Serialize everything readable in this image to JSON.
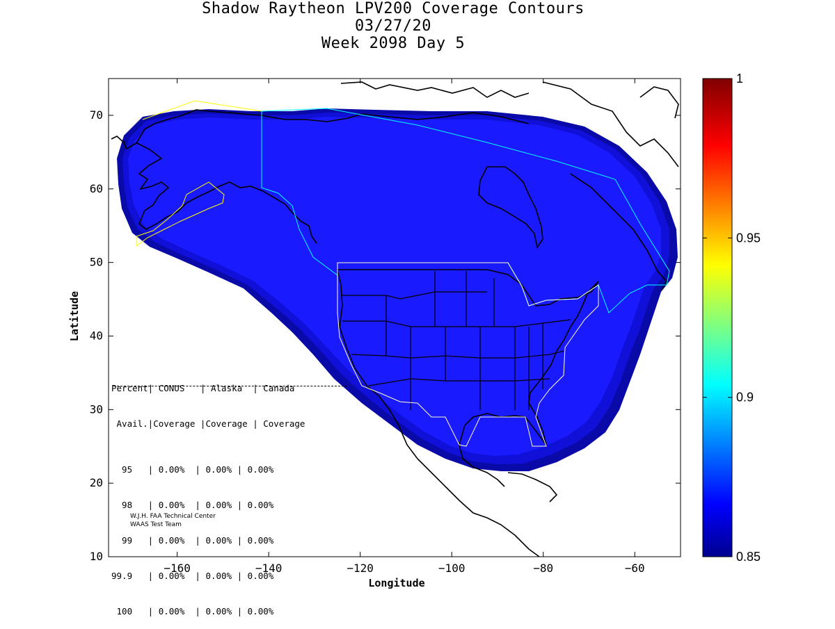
{
  "title": {
    "line1": "Shadow Raytheon LPV200 Coverage Contours",
    "line2": "03/27/20",
    "line3": "Week 2098 Day 5"
  },
  "axes": {
    "xlabel": "Longitude",
    "ylabel": "Latitude",
    "xlim": [
      -175,
      -50
    ],
    "ylim": [
      10,
      75
    ],
    "xticks": [
      -160,
      -140,
      -120,
      -100,
      -80,
      -60
    ],
    "yticks": [
      10,
      20,
      30,
      40,
      50,
      60,
      70
    ]
  },
  "colorbar": {
    "ticks": [
      "0.85",
      "0.9",
      "0.95",
      "1"
    ],
    "min": 0.85,
    "max": 1.0,
    "colormap": "jet"
  },
  "stats_table": {
    "header1": "Percent| CONUS   | Alaska  | Canada",
    "header2": " Avail.|Coverage |Coverage | Coverage",
    "rows": [
      "  95   | 0.00%  | 0.00% | 0.00%",
      "  98   | 0.00%  | 0.00% | 0.00%",
      "  99   | 0.00%  | 0.00% | 0.00%",
      "99.9   | 0.00%  | 0.00% | 0.00%",
      " 100   | 0.00%  | 0.00% | 0.00%"
    ]
  },
  "credit": {
    "line1": "W.J.H. FAA Technical Center",
    "line2": "WAAS Test Team"
  },
  "colors": {
    "coverage_fill": "#1a1aff",
    "coverage_mid": "#1010d8",
    "coverage_edge": "#0a0aa8",
    "service_volume_alaska": "#ffff00",
    "service_volume_canada": "#00ffff",
    "service_volume_conus": "#ffffcc"
  }
}
